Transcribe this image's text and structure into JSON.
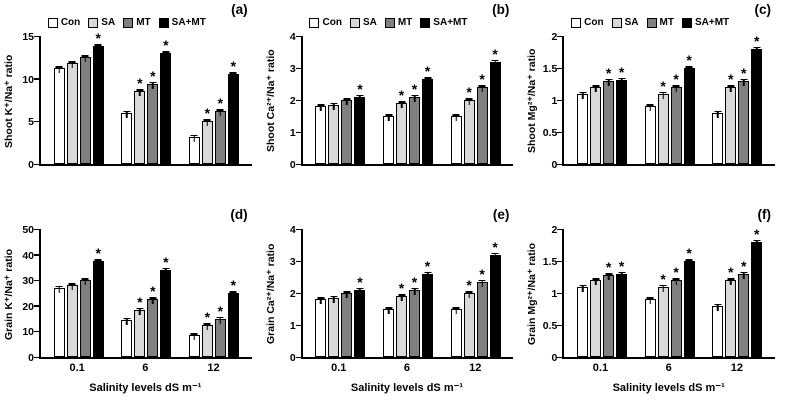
{
  "figure": {
    "background": "#ffffff"
  },
  "style": {
    "axis_color": "#000000",
    "series_colors": [
      "#ffffff",
      "#d9d9d9",
      "#808080",
      "#000000"
    ]
  },
  "legend": {
    "labels": [
      "Con",
      "SA",
      "MT",
      "SA+MT"
    ]
  },
  "chart_data": [
    {
      "type": "bar",
      "panel_label": "(a)",
      "ylabel": "Shoot K⁺/Na⁺ ratio",
      "categories": [
        "0.1",
        "6",
        "12"
      ],
      "series": [
        {
          "name": "Con",
          "color": "#ffffff",
          "values": [
            11.2,
            6.0,
            3.2
          ],
          "sig": [
            false,
            false,
            false
          ]
        },
        {
          "name": "SA",
          "color": "#d9d9d9",
          "values": [
            11.8,
            8.5,
            5.0
          ],
          "sig": [
            false,
            true,
            true
          ]
        },
        {
          "name": "MT",
          "color": "#808080",
          "values": [
            12.5,
            9.4,
            6.2
          ],
          "sig": [
            false,
            true,
            true
          ]
        },
        {
          "name": "SA+MT",
          "color": "#000000",
          "values": [
            13.8,
            13.0,
            10.5
          ],
          "sig": [
            true,
            true,
            true
          ]
        }
      ],
      "ylim": [
        0,
        15
      ],
      "yticks": [
        0,
        5,
        10,
        15
      ],
      "error": 0.3,
      "show_legend": true,
      "show_x": false
    },
    {
      "type": "bar",
      "panel_label": "(b)",
      "ylabel": "Shoot Ca²⁺/Na⁺ ratio",
      "categories": [
        "0.1",
        "6",
        "12"
      ],
      "series": [
        {
          "name": "Con",
          "color": "#ffffff",
          "values": [
            1.8,
            1.5,
            1.5
          ],
          "sig": [
            false,
            false,
            false
          ]
        },
        {
          "name": "SA",
          "color": "#d9d9d9",
          "values": [
            1.85,
            1.9,
            2.0
          ],
          "sig": [
            false,
            true,
            true
          ]
        },
        {
          "name": "MT",
          "color": "#808080",
          "values": [
            2.0,
            2.1,
            2.4
          ],
          "sig": [
            false,
            true,
            true
          ]
        },
        {
          "name": "SA+MT",
          "color": "#000000",
          "values": [
            2.1,
            2.65,
            3.2
          ],
          "sig": [
            true,
            true,
            true
          ]
        }
      ],
      "ylim": [
        0,
        4
      ],
      "yticks": [
        0,
        1,
        2,
        3,
        4
      ],
      "error": 0.08,
      "show_legend": true,
      "show_x": false
    },
    {
      "type": "bar",
      "panel_label": "(c)",
      "ylabel": "Shoot Mg²⁺/Na⁺ ratio",
      "categories": [
        "0.1",
        "6",
        "12"
      ],
      "series": [
        {
          "name": "Con",
          "color": "#ffffff",
          "values": [
            1.1,
            0.9,
            0.8
          ],
          "sig": [
            false,
            false,
            false
          ]
        },
        {
          "name": "SA",
          "color": "#d9d9d9",
          "values": [
            1.2,
            1.1,
            1.2
          ],
          "sig": [
            false,
            true,
            true
          ]
        },
        {
          "name": "MT",
          "color": "#808080",
          "values": [
            1.3,
            1.2,
            1.3
          ],
          "sig": [
            true,
            true,
            true
          ]
        },
        {
          "name": "SA+MT",
          "color": "#000000",
          "values": [
            1.32,
            1.5,
            1.8
          ],
          "sig": [
            true,
            true,
            true
          ]
        }
      ],
      "ylim": [
        0,
        2
      ],
      "yticks": [
        0,
        0.5,
        1,
        1.5,
        2
      ],
      "error": 0.04,
      "show_legend": true,
      "show_x": false
    },
    {
      "type": "bar",
      "panel_label": "(d)",
      "ylabel": "Grain K⁺/Na⁺ ratio",
      "xlabel": "Salinity levels dS m⁻¹",
      "categories": [
        "0.1",
        "6",
        "12"
      ],
      "series": [
        {
          "name": "Con",
          "color": "#ffffff",
          "values": [
            27,
            14.5,
            8.5
          ],
          "sig": [
            false,
            false,
            false
          ]
        },
        {
          "name": "SA",
          "color": "#d9d9d9",
          "values": [
            28,
            18.5,
            12.5
          ],
          "sig": [
            false,
            true,
            true
          ]
        },
        {
          "name": "MT",
          "color": "#808080",
          "values": [
            30,
            22.5,
            15
          ],
          "sig": [
            false,
            true,
            true
          ]
        },
        {
          "name": "SA+MT",
          "color": "#000000",
          "values": [
            37.5,
            34,
            25
          ],
          "sig": [
            true,
            true,
            true
          ]
        }
      ],
      "ylim": [
        0,
        50
      ],
      "yticks": [
        0,
        10,
        20,
        30,
        40,
        50
      ],
      "error": 1,
      "show_legend": false,
      "show_x": true
    },
    {
      "type": "bar",
      "panel_label": "(e)",
      "ylabel": "Grain Ca²⁺/Na⁺ ratio",
      "xlabel": "Salinity levels dS m⁻¹",
      "categories": [
        "0.1",
        "6",
        "12"
      ],
      "series": [
        {
          "name": "Con",
          "color": "#ffffff",
          "values": [
            1.8,
            1.5,
            1.5
          ],
          "sig": [
            false,
            false,
            false
          ]
        },
        {
          "name": "SA",
          "color": "#d9d9d9",
          "values": [
            1.85,
            1.9,
            2.0
          ],
          "sig": [
            false,
            true,
            true
          ]
        },
        {
          "name": "MT",
          "color": "#808080",
          "values": [
            2.0,
            2.1,
            2.35
          ],
          "sig": [
            false,
            true,
            true
          ]
        },
        {
          "name": "SA+MT",
          "color": "#000000",
          "values": [
            2.1,
            2.6,
            3.2
          ],
          "sig": [
            true,
            true,
            true
          ]
        }
      ],
      "ylim": [
        0,
        4
      ],
      "yticks": [
        0,
        1,
        2,
        3,
        4
      ],
      "error": 0.08,
      "show_legend": false,
      "show_x": true
    },
    {
      "type": "bar",
      "panel_label": "(f)",
      "ylabel": "Grain Mg²⁺/Na⁺ ratio",
      "xlabel": "Salinity levels dS m⁻¹",
      "categories": [
        "0.1",
        "6",
        "12"
      ],
      "series": [
        {
          "name": "Con",
          "color": "#ffffff",
          "values": [
            1.1,
            0.9,
            0.8
          ],
          "sig": [
            false,
            false,
            false
          ]
        },
        {
          "name": "SA",
          "color": "#d9d9d9",
          "values": [
            1.2,
            1.1,
            1.2
          ],
          "sig": [
            false,
            true,
            true
          ]
        },
        {
          "name": "MT",
          "color": "#808080",
          "values": [
            1.28,
            1.2,
            1.3
          ],
          "sig": [
            true,
            true,
            true
          ]
        },
        {
          "name": "SA+MT",
          "color": "#000000",
          "values": [
            1.3,
            1.5,
            1.8
          ],
          "sig": [
            true,
            true,
            true
          ]
        }
      ],
      "ylim": [
        0,
        2
      ],
      "yticks": [
        0,
        0.5,
        1,
        1.5,
        2
      ],
      "error": 0.04,
      "show_legend": false,
      "show_x": true
    }
  ]
}
